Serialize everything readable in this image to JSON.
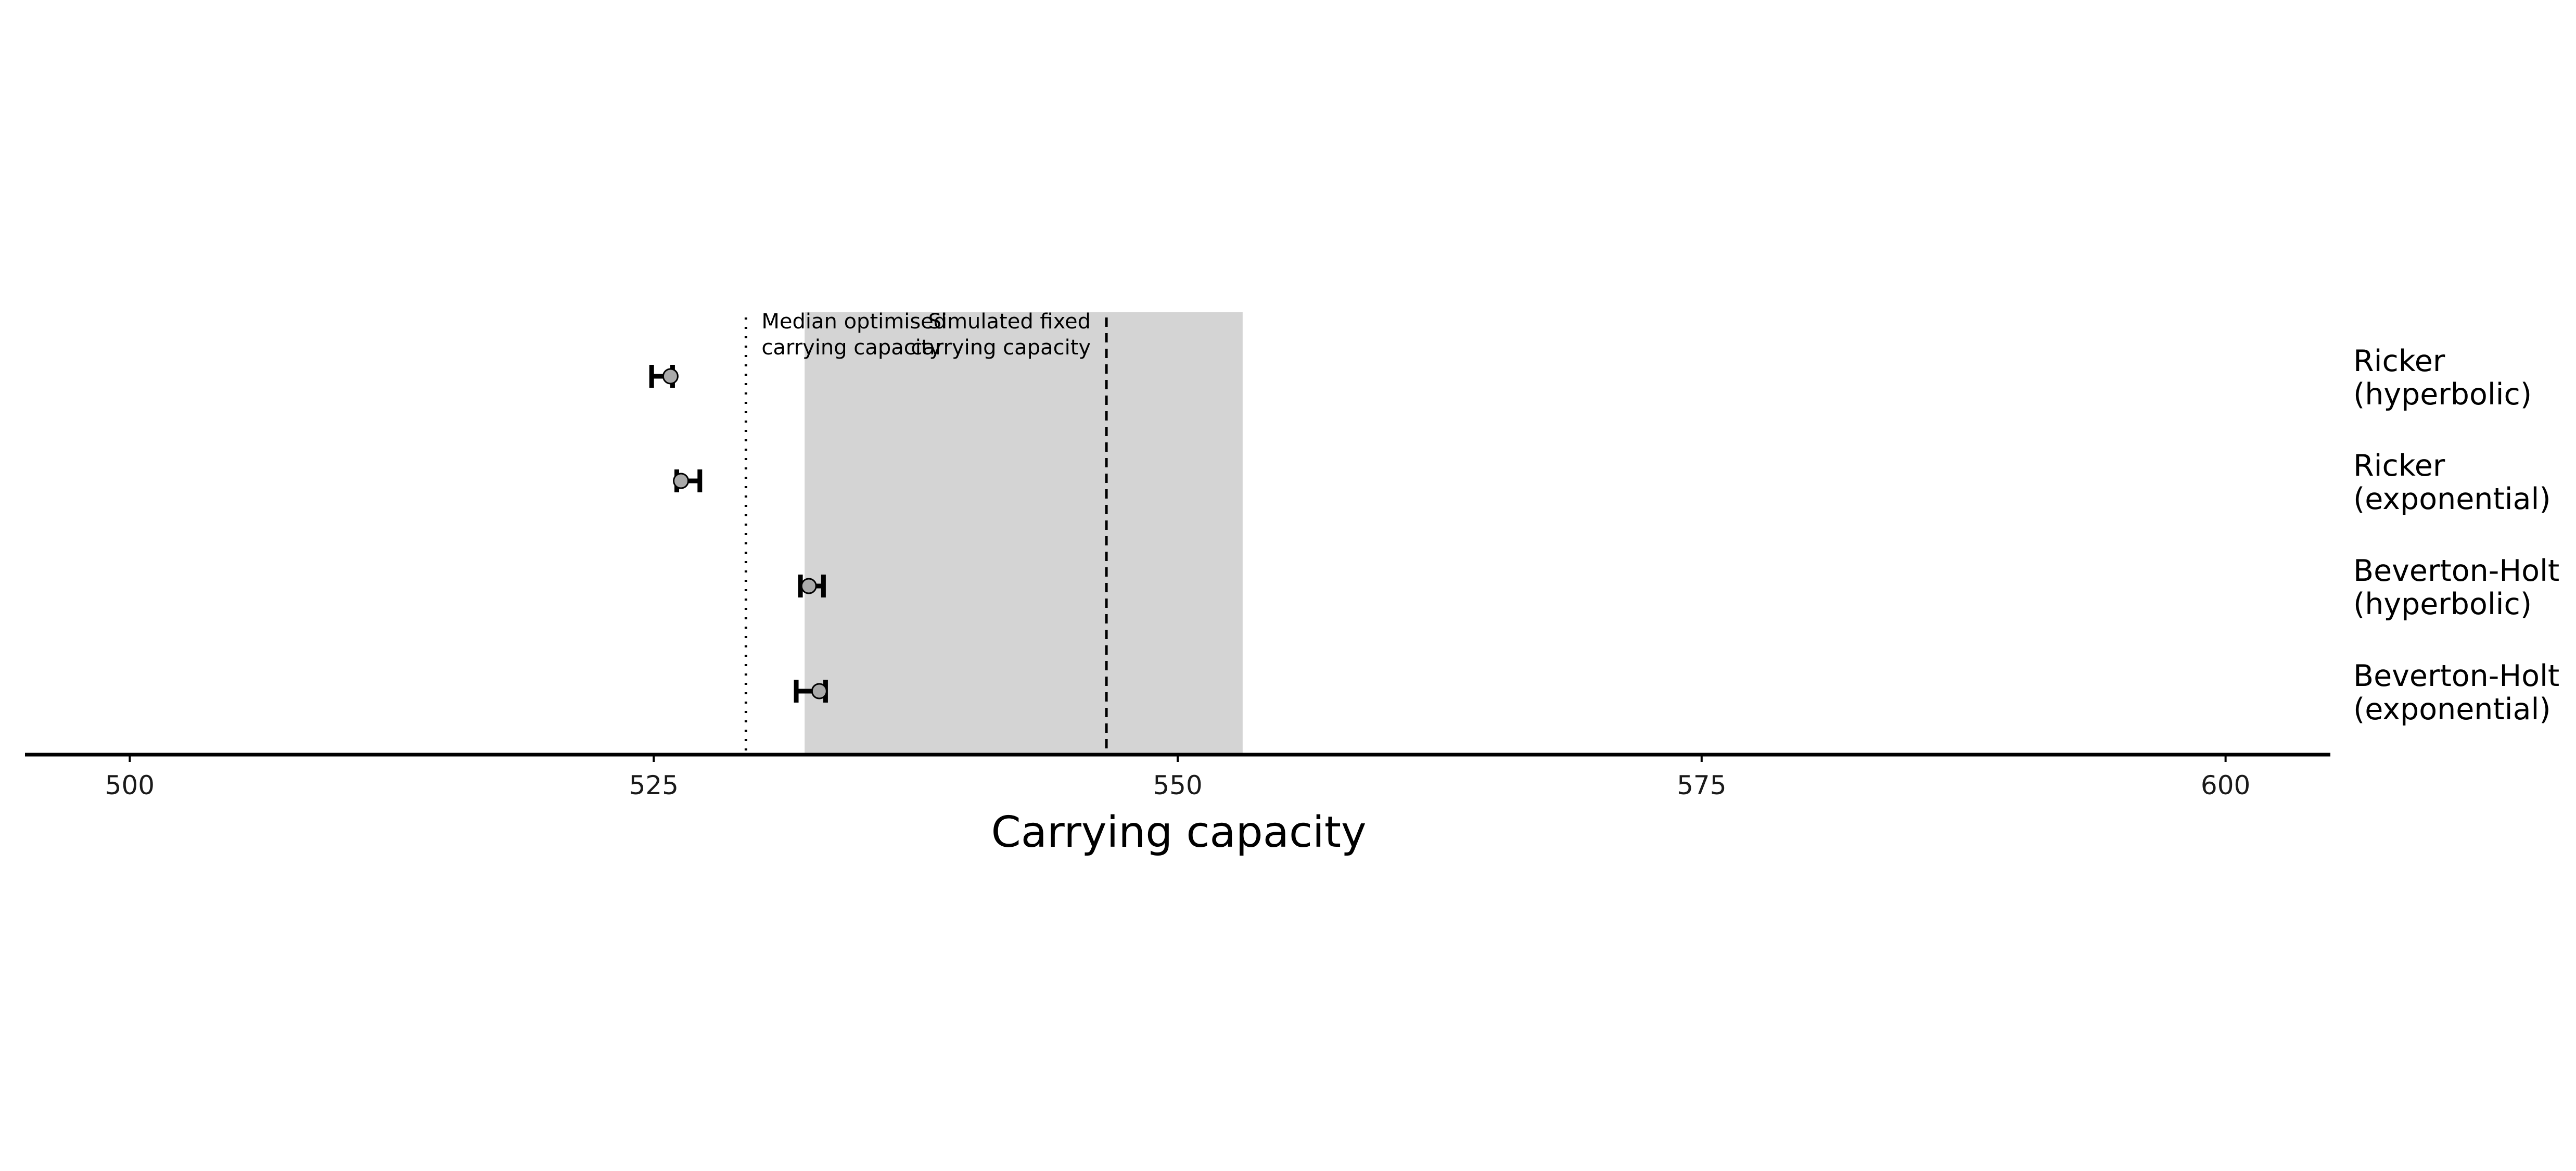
{
  "chart_data": {
    "type": "scatter",
    "title": "",
    "xlabel": "Carrying capacity",
    "ylabel": "",
    "xlim": [
      495,
      605
    ],
    "xticks": [
      500,
      525,
      550,
      575,
      600
    ],
    "grid": false,
    "legend": "none",
    "categories": [
      [
        "Ricker",
        "(hyperbolic)"
      ],
      [
        "Ricker",
        "(exponential)"
      ],
      [
        "Beverton-Holt",
        "(hyperbolic)"
      ],
      [
        "Beverton-Holt",
        "(exponential)"
      ]
    ],
    "points": [
      {
        "estimate": 525.8,
        "lower": 524.9,
        "upper": 525.9
      },
      {
        "estimate": 526.3,
        "lower": 526.1,
        "upper": 527.2
      },
      {
        "estimate": 532.4,
        "lower": 532.0,
        "upper": 533.1
      },
      {
        "estimate": 532.9,
        "lower": 531.8,
        "upper": 533.2
      }
    ],
    "shaded_band": {
      "from": 532.2,
      "to": 553.1,
      "color": "#d4d4d4"
    },
    "reference_lines": [
      {
        "value": 529.4,
        "style": "dotted",
        "label": [
          "Median optimised",
          "carrying capacity"
        ]
      },
      {
        "value": 546.6,
        "style": "dashed",
        "label": [
          "Simulated fixed",
          "carrying capacity"
        ]
      }
    ],
    "point_color": "#aaaaaa"
  }
}
